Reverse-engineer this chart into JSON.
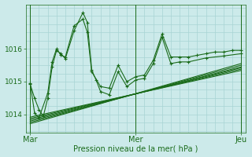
{
  "background_color": "#cceaea",
  "grid_color": "#a8d4d4",
  "line_color": "#1a6b1a",
  "ylabel_values": [
    1014,
    1015,
    1016
  ],
  "xtick_labels": [
    "Mar",
    "Mer",
    "Jeu"
  ],
  "xtick_positions": [
    0,
    48,
    96
  ],
  "xlabel": "Pression niveau de la mer( hPa )",
  "ylim": [
    1013.45,
    1017.35
  ],
  "xlim": [
    -2,
    98
  ],
  "wavy_series": [
    {
      "x": [
        0,
        2,
        4,
        8,
        10,
        12,
        14,
        16,
        20,
        24,
        26,
        28,
        32,
        36,
        40,
        44,
        48,
        52,
        56,
        60,
        64,
        68,
        72,
        76,
        80,
        84,
        88,
        92,
        96
      ],
      "y": [
        1014.95,
        1014.05,
        1013.9,
        1014.65,
        1015.6,
        1016.0,
        1015.8,
        1015.75,
        1016.7,
        1016.9,
        1016.5,
        1015.3,
        1014.85,
        1014.8,
        1015.5,
        1015.0,
        1015.15,
        1015.2,
        1015.65,
        1016.45,
        1015.75,
        1015.75,
        1015.75,
        1015.8,
        1015.85,
        1015.9,
        1015.9,
        1015.95,
        1015.95
      ]
    },
    {
      "x": [
        0,
        2,
        4,
        6,
        8,
        10,
        12,
        14,
        16,
        20,
        24,
        26,
        28,
        30,
        32,
        36,
        40,
        44,
        48,
        52,
        56,
        60,
        64,
        68,
        72,
        80,
        88,
        96
      ],
      "y": [
        1014.92,
        1014.5,
        1014.15,
        1013.95,
        1014.5,
        1015.45,
        1015.95,
        1015.85,
        1015.7,
        1016.55,
        1017.1,
        1016.8,
        1015.35,
        1015.05,
        1014.7,
        1014.6,
        1015.3,
        1014.85,
        1015.05,
        1015.1,
        1015.55,
        1016.35,
        1015.55,
        1015.6,
        1015.6,
        1015.72,
        1015.78,
        1015.85
      ]
    }
  ],
  "linear_series": [
    {
      "x": [
        0,
        96
      ],
      "y": [
        1013.72,
        1015.55
      ]
    },
    {
      "x": [
        0,
        96
      ],
      "y": [
        1013.76,
        1015.5
      ]
    },
    {
      "x": [
        0,
        96
      ],
      "y": [
        1013.8,
        1015.45
      ]
    },
    {
      "x": [
        0,
        96
      ],
      "y": [
        1013.84,
        1015.42
      ]
    },
    {
      "x": [
        0,
        96
      ],
      "y": [
        1013.88,
        1015.38
      ]
    },
    {
      "x": [
        0,
        96
      ],
      "y": [
        1013.92,
        1015.34
      ]
    }
  ]
}
